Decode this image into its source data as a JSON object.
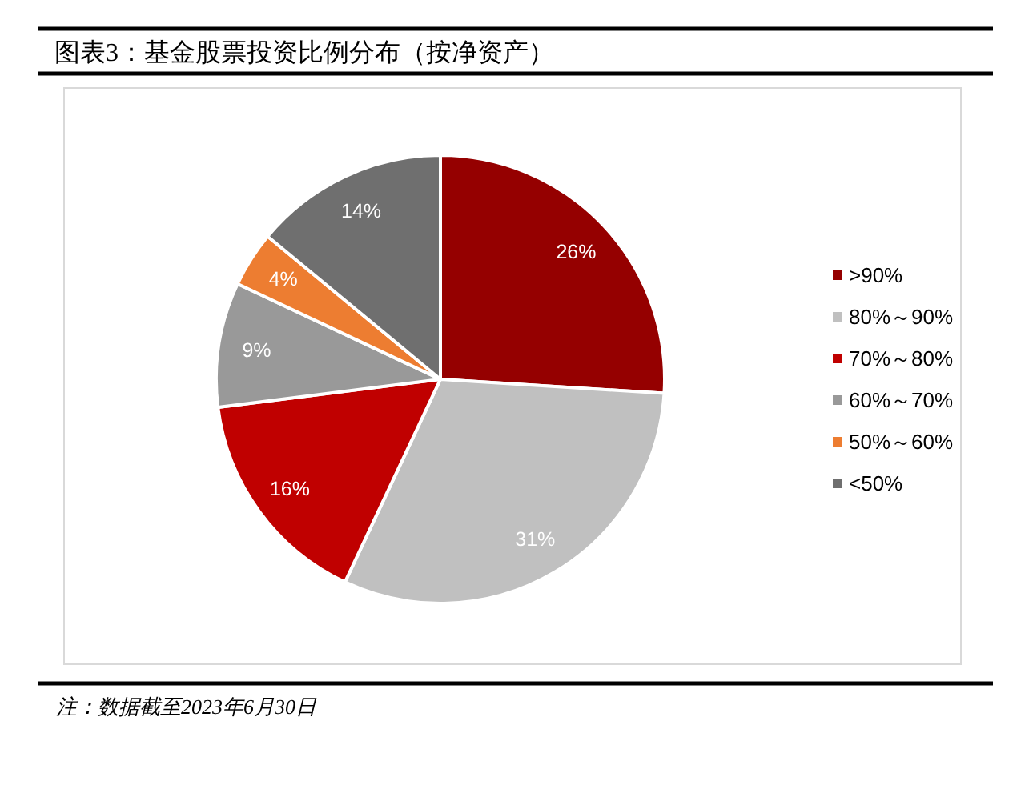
{
  "chart_data": {
    "type": "pie",
    "title": "图表3：基金股票投资比例分布（按净资产）",
    "categories": [
      ">90%",
      "80%～90%",
      "70%～80%",
      "60%～70%",
      "50%～60%",
      "<50%"
    ],
    "values": [
      26,
      31,
      16,
      9,
      4,
      14
    ],
    "colors": [
      "#950000",
      "#c0c0c0",
      "#c00000",
      "#999999",
      "#ed7d31",
      "#6f6f6f"
    ],
    "value_labels": [
      "26%",
      "31%",
      "16%",
      "9%",
      "4%",
      "14%"
    ],
    "legend": "right",
    "annotations": [
      "注：数据截至2023年6月30日"
    ]
  }
}
